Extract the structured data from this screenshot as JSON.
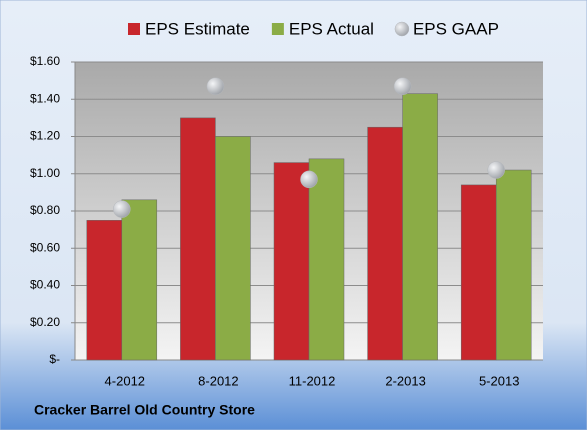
{
  "chart_data": {
    "type": "bar",
    "caption": "Cracker Barrel Old Country Store",
    "categories": [
      "4-2012",
      "8-2012",
      "11-2012",
      "2-2013",
      "5-2013"
    ],
    "series": [
      {
        "name": "EPS Estimate",
        "color": "#c8262c",
        "values": [
          0.75,
          1.3,
          1.06,
          1.25,
          0.94
        ]
      },
      {
        "name": "EPS Actual",
        "color": "#8bac46",
        "values": [
          0.86,
          1.2,
          1.08,
          1.43,
          1.02
        ]
      },
      {
        "name": "EPS GAAP",
        "color": "#b5b8bd",
        "type": "scatter",
        "values": [
          0.81,
          1.47,
          0.97,
          1.47,
          1.02
        ]
      }
    ],
    "ylim": [
      0,
      1.6
    ],
    "yticks": [
      {
        "value": 0,
        "label": "$-"
      },
      {
        "value": 0.2,
        "label": "$0.20"
      },
      {
        "value": 0.4,
        "label": "$0.40"
      },
      {
        "value": 0.6,
        "label": "$0.60"
      },
      {
        "value": 0.8,
        "label": "$0.80"
      },
      {
        "value": 1.0,
        "label": "$1.00"
      },
      {
        "value": 1.2,
        "label": "$1.20"
      },
      {
        "value": 1.4,
        "label": "$1.40"
      },
      {
        "value": 1.6,
        "label": "$1.60"
      }
    ],
    "grid": true
  }
}
